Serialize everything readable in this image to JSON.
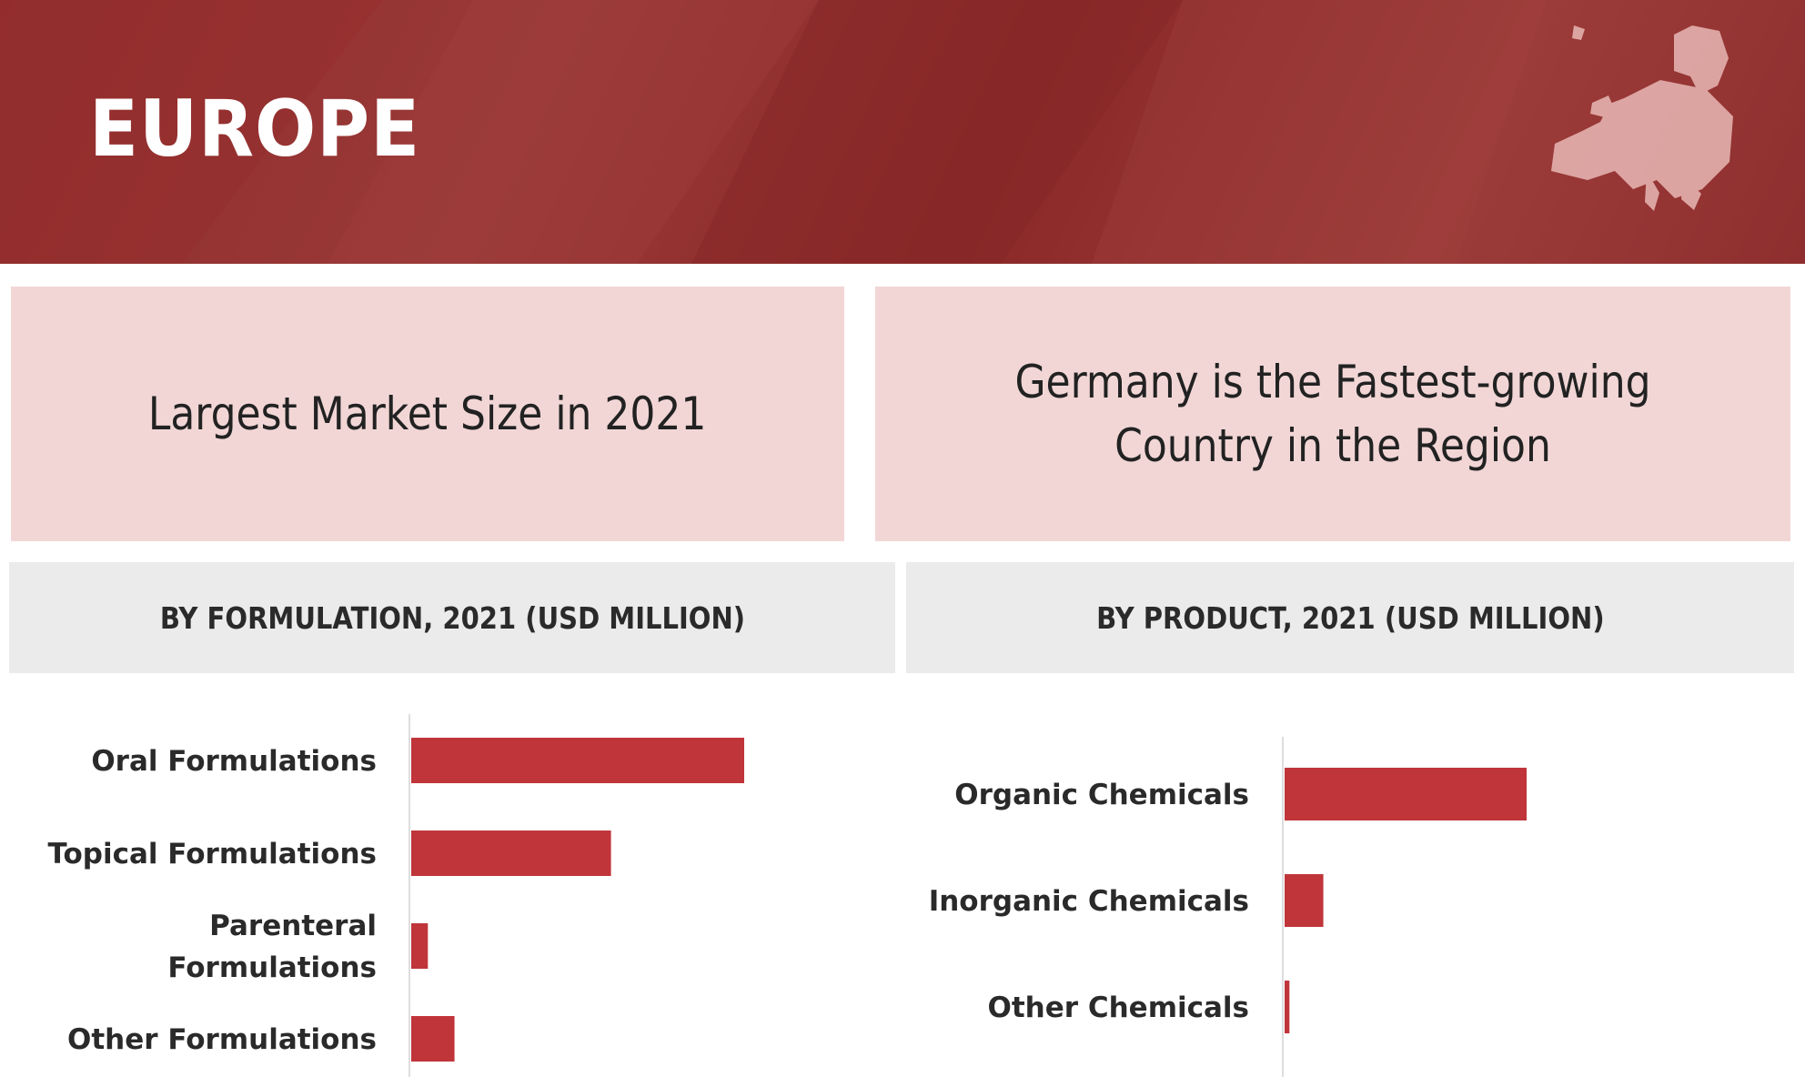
{
  "banner": {
    "title": "EUROPE",
    "map_icon": "europe-map-icon"
  },
  "highlights": {
    "left": "Largest Market Size in 2021",
    "right": "Germany is the Fastest-growing Country in the Region"
  },
  "colors": {
    "banner": "#8e2c2c",
    "bar": "#c0353a",
    "highlight_box": "#f2d6d6",
    "subtitle_box": "#ebebeb"
  },
  "chart_data": [
    {
      "type": "bar",
      "orientation": "horizontal",
      "title": "BY FORMULATION, 2021 (USD MILLION)",
      "categories": [
        [
          "Oral Formulations"
        ],
        [
          "Topical Formulations"
        ],
        [
          "Parenteral",
          "Formulations"
        ],
        [
          "Other Formulations"
        ]
      ],
      "values": [
        100,
        60,
        5,
        13
      ],
      "xlim": [
        0,
        100
      ],
      "grid": false,
      "legend": "none"
    },
    {
      "type": "bar",
      "orientation": "horizontal",
      "title": "BY PRODUCT, 2021 (USD MILLION)",
      "categories": [
        [
          "Organic Chemicals"
        ],
        [
          "Inorganic Chemicals"
        ],
        [
          "Other Chemicals"
        ]
      ],
      "values": [
        100,
        16,
        2
      ],
      "xlim": [
        0,
        100
      ],
      "grid": false,
      "legend": "none"
    }
  ]
}
